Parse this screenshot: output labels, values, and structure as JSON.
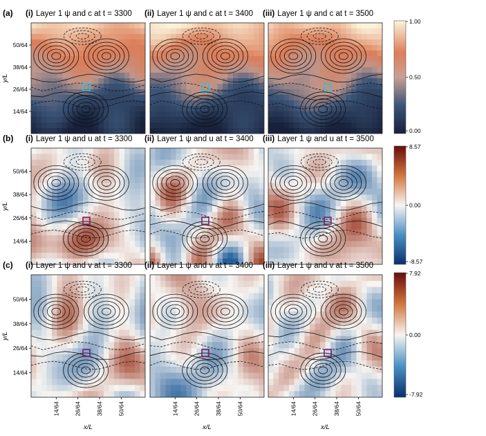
{
  "rows": [
    {
      "label": "(a)",
      "field": "c",
      "colorbar": {
        "max": "1.00",
        "mid": "0.50",
        "min": "0.00",
        "cmap": "concentration"
      },
      "marker_color": "#2ec4d6",
      "panels": [
        {
          "roman": "(i)",
          "title_text": "Layer 1 ψ and c at t = 3300"
        },
        {
          "roman": "(ii)",
          "title_text": "Layer 1 ψ and c at t = 3400"
        },
        {
          "roman": "(iii)",
          "title_text": "Layer 1 ψ and c at t = 3500"
        }
      ]
    },
    {
      "label": "(b)",
      "field": "u",
      "colorbar": {
        "max": "8.57",
        "mid": "0.00",
        "min": "-8.57",
        "cmap": "diverging"
      },
      "marker_color": "#7a1a6e",
      "panels": [
        {
          "roman": "(i)",
          "title_text": "Layer 1 ψ and u at t = 3300"
        },
        {
          "roman": "(ii)",
          "title_text": "Layer 1 ψ and u at t = 3400"
        },
        {
          "roman": "(iii)",
          "title_text": "Layer 1 ψ and u at t = 3500"
        }
      ]
    },
    {
      "label": "(c)",
      "field": "v",
      "colorbar": {
        "max": "7.92",
        "mid": "0.00",
        "min": "-7.92",
        "cmap": "diverging"
      },
      "marker_color": "#7a1a6e",
      "panels": [
        {
          "roman": "(i)",
          "title_text": "Layer 1 ψ and v at t = 3300"
        },
        {
          "roman": "(ii)",
          "title_text": "Layer 1 ψ and v at t = 3400"
        },
        {
          "roman": "(iii)",
          "title_text": "Layer 1 ψ and v at t = 3500"
        }
      ]
    }
  ],
  "axes": {
    "ylabel": "y/L",
    "xlabel": "x/L",
    "yticks": [
      "50/64",
      "38/64",
      "26/64",
      "14/64"
    ],
    "xticks": [
      "14/64",
      "26/64",
      "38/64",
      "50/64"
    ]
  }
}
